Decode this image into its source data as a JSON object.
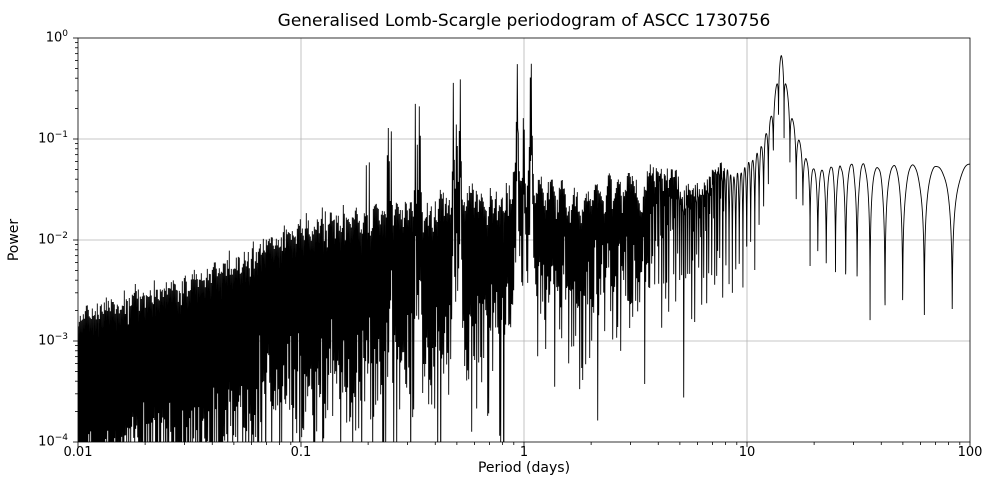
{
  "chart_data": {
    "type": "line",
    "title": "Generalised Lomb-Scargle periodogram of ASCC 1730756",
    "xlabel": "Period (days)",
    "ylabel": "Power",
    "x_scale": "log",
    "y_scale": "log",
    "xlim": [
      0.01,
      100
    ],
    "ylim": [
      0.0001,
      1
    ],
    "x_tick_values": [
      0.01,
      0.1,
      1,
      10,
      100
    ],
    "x_tick_labels": [
      "0.01",
      "0.1",
      "1",
      "10",
      "100"
    ],
    "y_tick_exponents": [
      0,
      -1,
      -2,
      -3,
      -4
    ],
    "grid": {
      "major": true,
      "minor": false,
      "color": "#b4b4b4"
    },
    "legend": null,
    "line_color": "#000000",
    "background_color": "#ffffff",
    "main_peaks": [
      {
        "period_days": 14.2,
        "power": 0.62
      },
      {
        "period_days": 15.0,
        "power": 0.36
      },
      {
        "period_days": 13.4,
        "power": 0.3
      },
      {
        "period_days": 15.5,
        "power": 0.2
      },
      {
        "period_days": 16.2,
        "power": 0.18
      },
      {
        "period_days": 1.075,
        "power": 0.57
      },
      {
        "period_days": 0.935,
        "power": 0.55
      },
      {
        "period_days": 0.518,
        "power": 0.44
      },
      {
        "period_days": 0.483,
        "power": 0.39
      },
      {
        "period_days": 0.326,
        "power": 0.25
      },
      {
        "period_days": 0.341,
        "power": 0.23
      },
      {
        "period_days": 0.246,
        "power": 0.13
      },
      {
        "period_days": 0.254,
        "power": 0.12
      },
      {
        "period_days": 0.2,
        "power": 0.05
      }
    ],
    "noise_envelope": {
      "periods_days": [
        0.01,
        0.03,
        0.1,
        0.3,
        1,
        3,
        8,
        30,
        100
      ],
      "power": [
        0.0013,
        0.0026,
        0.01,
        0.017,
        0.026,
        0.035,
        0.05,
        0.055,
        0.058
      ]
    },
    "spectral_window_model": {
      "true_frequency_cpd": 0.0702,
      "null_spacing_cpd": 0.004013,
      "peak_width_cpd": 0.0035,
      "alias_peaks_cpd": [
        [
          0.0702,
          0.62
        ],
        [
          0.9298,
          0.57
        ],
        [
          1.0702,
          0.55
        ],
        [
          1.9298,
          0.44
        ],
        [
          2.0702,
          0.39
        ],
        [
          2.9298,
          0.23
        ],
        [
          3.0702,
          0.25
        ],
        [
          3.9298,
          0.12
        ],
        [
          4.0702,
          0.13
        ],
        [
          4.9298,
          0.05
        ],
        [
          5.0702,
          0.045
        ],
        [
          1.0,
          0.15
        ],
        [
          2.0,
          0.12
        ],
        [
          3.0,
          0.08
        ],
        [
          4.0,
          0.05
        ]
      ]
    }
  }
}
